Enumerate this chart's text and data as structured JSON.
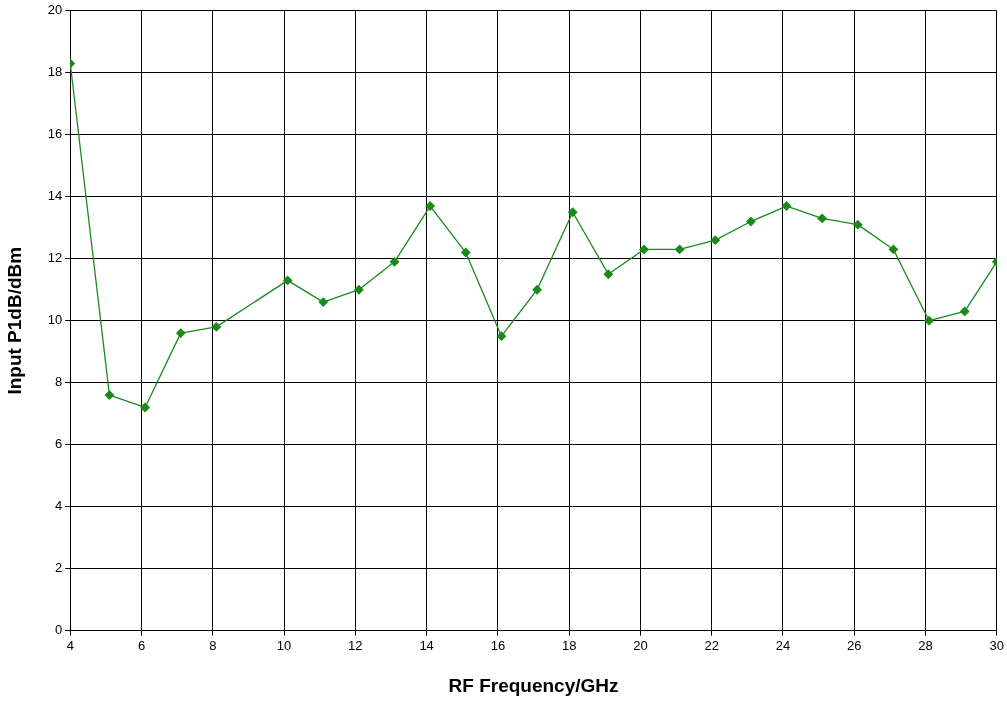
{
  "chart_data": {
    "type": "line",
    "xlabel": "RF Frequency/GHz",
    "ylabel": "Input P1dB/dBm",
    "x": [
      4,
      5.1,
      6.1,
      7.1,
      8.1,
      10.1,
      11.1,
      12.1,
      13.1,
      14.1,
      15.1,
      16.1,
      17.1,
      18.1,
      19.1,
      20.1,
      21.1,
      22.1,
      23.1,
      24.1,
      25.1,
      26.1,
      27.1,
      28.1,
      29.1,
      30
    ],
    "series": [
      {
        "color": "#1a8a1a",
        "values": [
          18.3,
          7.6,
          7.2,
          9.6,
          9.8,
          11.3,
          10.6,
          11.0,
          11.9,
          13.7,
          12.2,
          9.5,
          11.0,
          13.5,
          11.5,
          12.3,
          12.3,
          12.6,
          13.2,
          13.7,
          13.3,
          13.1,
          12.3,
          10.0,
          10.3,
          11.9
        ]
      }
    ],
    "xlim": [
      4,
      30
    ],
    "xticks": [
      4,
      6,
      8,
      10,
      12,
      14,
      16,
      18,
      20,
      22,
      24,
      26,
      28,
      30
    ],
    "ylim": [
      0,
      20
    ],
    "yticks": [
      0,
      2,
      4,
      6,
      8,
      10,
      12,
      14,
      16,
      18,
      20
    ],
    "grid": true,
    "legend": false,
    "marker": "diamond",
    "line_style": "solid"
  }
}
